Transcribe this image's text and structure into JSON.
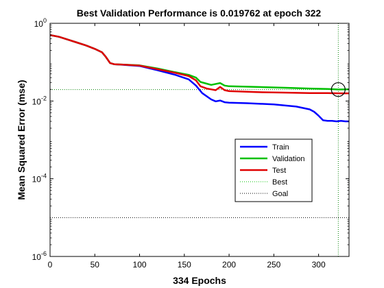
{
  "chart_data": {
    "type": "line",
    "title": "Best Validation Performance is 0.019762 at epoch 322",
    "xlabel": "334 Epochs",
    "ylabel": "Mean Squared Error  (mse)",
    "xlim": [
      0,
      334
    ],
    "ylim": [
      1e-06,
      1
    ],
    "yscale": "log",
    "x_ticks": [
      0,
      50,
      100,
      150,
      200,
      250,
      300
    ],
    "y_ticks": [
      {
        "value": 1,
        "base": "10",
        "exp": "0"
      },
      {
        "value": 0.01,
        "base": "10",
        "exp": "-2"
      },
      {
        "value": 0.0001,
        "base": "10",
        "exp": "-4"
      },
      {
        "value": 1e-06,
        "base": "10",
        "exp": "-6"
      }
    ],
    "grid": false,
    "legend_position": "lower-right",
    "best": {
      "epoch": 322,
      "value": 0.019762,
      "color": "#008000"
    },
    "goal": {
      "value": 1e-05,
      "color": "#000000"
    },
    "series": [
      {
        "name": "Train",
        "color": "#0000ff",
        "x": [
          0,
          10,
          20,
          30,
          40,
          50,
          58,
          62,
          67,
          72,
          80,
          100,
          120,
          140,
          155,
          163,
          170,
          180,
          185,
          190,
          195,
          200,
          220,
          250,
          275,
          290,
          295,
          300,
          305,
          310,
          315,
          320,
          325,
          330,
          334
        ],
        "y": [
          0.5,
          0.45,
          0.38,
          0.32,
          0.27,
          0.22,
          0.18,
          0.14,
          0.095,
          0.088,
          0.086,
          0.08,
          0.062,
          0.047,
          0.036,
          0.025,
          0.016,
          0.011,
          0.0098,
          0.0103,
          0.0093,
          0.0091,
          0.0088,
          0.0082,
          0.0072,
          0.0061,
          0.0053,
          0.0042,
          0.0032,
          0.0031,
          0.0031,
          0.003,
          0.0031,
          0.003,
          0.003
        ]
      },
      {
        "name": "Validation",
        "color": "#00c000",
        "x": [
          0,
          10,
          20,
          30,
          40,
          50,
          58,
          62,
          67,
          72,
          80,
          100,
          120,
          140,
          155,
          163,
          168,
          175,
          180,
          190,
          195,
          200,
          230,
          260,
          290,
          310,
          322,
          334
        ],
        "y": [
          0.5,
          0.45,
          0.38,
          0.32,
          0.27,
          0.22,
          0.18,
          0.14,
          0.095,
          0.088,
          0.087,
          0.083,
          0.069,
          0.055,
          0.047,
          0.04,
          0.031,
          0.028,
          0.026,
          0.029,
          0.025,
          0.024,
          0.023,
          0.022,
          0.021,
          0.0205,
          0.0198,
          0.02
        ]
      },
      {
        "name": "Test",
        "color": "#e00000",
        "x": [
          0,
          10,
          20,
          30,
          40,
          50,
          58,
          62,
          67,
          72,
          80,
          100,
          120,
          140,
          155,
          163,
          168,
          175,
          180,
          185,
          190,
          195,
          200,
          230,
          260,
          290,
          310,
          322,
          334
        ],
        "y": [
          0.5,
          0.45,
          0.38,
          0.32,
          0.27,
          0.22,
          0.18,
          0.14,
          0.095,
          0.088,
          0.087,
          0.082,
          0.066,
          0.053,
          0.044,
          0.034,
          0.024,
          0.021,
          0.02,
          0.019,
          0.023,
          0.019,
          0.018,
          0.017,
          0.0165,
          0.016,
          0.016,
          0.0158,
          0.0158
        ]
      }
    ],
    "legend": [
      {
        "label": "Train",
        "color": "#0000ff",
        "style": "solid"
      },
      {
        "label": "Validation",
        "color": "#00c000",
        "style": "solid"
      },
      {
        "label": "Test",
        "color": "#e00000",
        "style": "solid"
      },
      {
        "label": "Best",
        "color": "#00c000",
        "style": "dotted"
      },
      {
        "label": "Goal",
        "color": "#000000",
        "style": "dotted"
      }
    ]
  }
}
